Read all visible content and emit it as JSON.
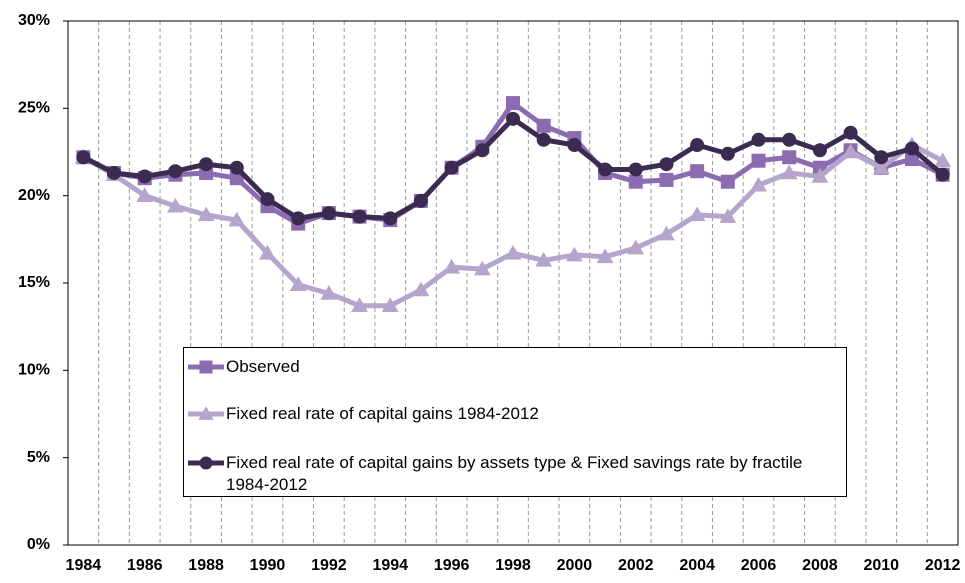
{
  "chart_data": {
    "type": "line",
    "categories": [
      "1984",
      null,
      "1986",
      null,
      "1988",
      null,
      "1990",
      null,
      "1992",
      null,
      "1994",
      null,
      "1996",
      null,
      "1998",
      null,
      "2000",
      null,
      "2002",
      null,
      "2004",
      null,
      "2006",
      null,
      "2008",
      null,
      "2010",
      null,
      "2012"
    ],
    "series": [
      {
        "name": "Observed",
        "color": "#8c6cb0",
        "marker": "square",
        "values": [
          22.2,
          21.3,
          21.0,
          21.2,
          21.3,
          21.0,
          19.4,
          18.4,
          19.0,
          18.8,
          18.6,
          19.7,
          21.6,
          22.8,
          25.3,
          24.0,
          23.3,
          21.3,
          20.8,
          20.9,
          21.4,
          20.8,
          22.0,
          22.2,
          21.6,
          22.6,
          21.6,
          22.1,
          21.2
        ]
      },
      {
        "name": "Fixed real rate of capital gains 1984-2012",
        "color": "#b5a5cc",
        "marker": "triangle",
        "values": [
          22.2,
          21.2,
          20.0,
          19.4,
          18.9,
          18.6,
          16.7,
          14.9,
          14.4,
          13.7,
          13.7,
          14.6,
          15.9,
          15.8,
          16.7,
          16.3,
          16.6,
          16.5,
          17.0,
          17.8,
          18.9,
          18.8,
          20.6,
          21.3,
          21.1,
          22.5,
          21.6,
          22.9,
          22.0
        ]
      },
      {
        "name": "Fixed real rate of capital gains by assets type & Fixed savings rate by fractile 1984-2012",
        "color": "#3c2b50",
        "marker": "circle",
        "values": [
          22.2,
          21.3,
          21.1,
          21.4,
          21.8,
          21.6,
          19.8,
          18.7,
          19.0,
          18.8,
          18.7,
          19.7,
          21.6,
          22.6,
          24.4,
          23.2,
          22.9,
          21.5,
          21.5,
          21.8,
          22.9,
          22.4,
          23.2,
          23.2,
          22.6,
          23.6,
          22.2,
          22.7,
          21.2
        ]
      }
    ],
    "ylim": [
      0,
      30
    ],
    "yticks": [
      {
        "value": 0,
        "label": "0%"
      },
      {
        "value": 5,
        "label": "5%"
      },
      {
        "value": 10,
        "label": "10%"
      },
      {
        "value": 15,
        "label": "15%"
      },
      {
        "value": 20,
        "label": "20%"
      },
      {
        "value": 25,
        "label": "25%"
      },
      {
        "value": 30,
        "label": "30%"
      }
    ],
    "grid": "x",
    "legend": "lower center"
  }
}
